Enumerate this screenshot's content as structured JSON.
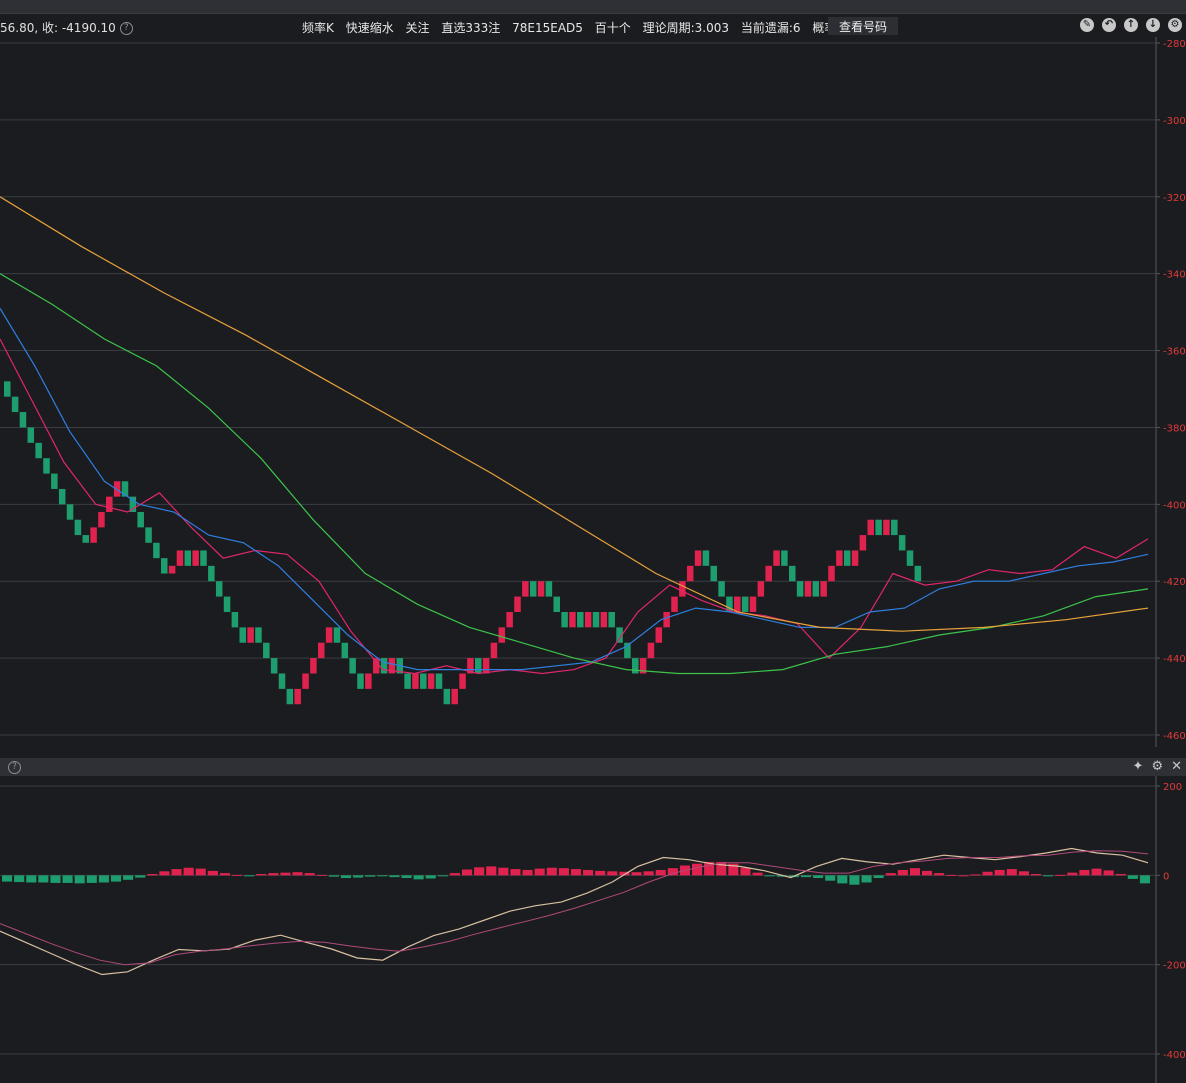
{
  "info_bar": {
    "left_text": "56.80, 收: -4190.10",
    "items": [
      "频率K",
      "快速缩水",
      "关注",
      "直选333注",
      "78E15EAD5",
      "百十个",
      "理论周期:3.003",
      "当前遗漏:6",
      "概率:33.3%"
    ],
    "check_button": "查看号码",
    "help_symbol": "?",
    "tool_icons": [
      "pen-icon",
      "undo-icon",
      "arrow-up-icon",
      "arrow-down-icon",
      "gear-icon"
    ]
  },
  "panel_bar": {
    "help_symbol": "?",
    "icons": [
      "pin-icon",
      "gear-icon",
      "close-icon"
    ],
    "icon_glyphs": [
      "✦",
      "⚙",
      "✕"
    ]
  },
  "colors": {
    "background": "#1b1c20",
    "up": "#e0234e",
    "down": "#1e9e6e",
    "ma_pink": "#e0266c",
    "ma_blue": "#2f7fe0",
    "ma_green": "#3cc44a",
    "ma_yellow": "#e8a23a",
    "axis_label": "#e03a3a",
    "grid": "#3a3c42"
  },
  "chart_data": [
    {
      "type": "candlestick",
      "y_axis_labels": [
        "-280",
        "-300",
        "-320",
        "-340",
        "-360",
        "-380",
        "-400",
        "-420",
        "-440",
        "-460"
      ],
      "ylim": [
        -460,
        -280
      ],
      "candles_close_sequence": [
        -372,
        -376,
        -380,
        -384,
        -388,
        -392,
        -396,
        -400,
        -404,
        -408,
        -410,
        -406,
        -402,
        -398,
        -394,
        -398,
        -402,
        -406,
        -410,
        -414,
        -418,
        -416,
        -412,
        -416,
        -412,
        -416,
        -420,
        -424,
        -428,
        -432,
        -436,
        -432,
        -436,
        -440,
        -444,
        -448,
        -452,
        -448,
        -444,
        -440,
        -436,
        -432,
        -436,
        -440,
        -444,
        -448,
        -444,
        -440,
        -444,
        -440,
        -444,
        -448,
        -444,
        -448,
        -444,
        -448,
        -452,
        -448,
        -444,
        -440,
        -444,
        -440,
        -436,
        -432,
        -428,
        -424,
        -420,
        -424,
        -420,
        -424,
        -428,
        -432,
        -428,
        -432,
        -428,
        -432,
        -428,
        -432,
        -436,
        -440,
        -444,
        -440,
        -436,
        -432,
        -428,
        -424,
        -420,
        -416,
        -412,
        -416,
        -420,
        -424,
        -428,
        -424,
        -428,
        -424,
        -420,
        -416,
        -412,
        -416,
        -420,
        -424,
        -420,
        -424,
        -420,
        -416,
        -412,
        -416,
        -412,
        -408,
        -404,
        -408,
        -404,
        -408,
        -412,
        -416,
        -420
      ],
      "moving_averages": [
        {
          "name": "MA5",
          "color": "#e0266c",
          "values": [
            -357,
            -373,
            -389,
            -400,
            -402,
            -397,
            -406,
            -414,
            -412,
            -413,
            -420,
            -433,
            -443,
            -444,
            -442,
            -444,
            -443,
            -444,
            -443,
            -440,
            -428,
            -421,
            -425,
            -428,
            -429,
            -431,
            -440,
            -432,
            -418,
            -421,
            -420,
            -417,
            -418,
            -417,
            -411,
            -414,
            -409
          ]
        },
        {
          "name": "MA10",
          "color": "#2f7fe0",
          "values": [
            -349,
            -364,
            -381,
            -394,
            -400,
            -402,
            -408,
            -410,
            -416,
            -425,
            -434,
            -441,
            -443,
            -443,
            -443,
            -443,
            -442,
            -441,
            -437,
            -430,
            -427,
            -428,
            -430,
            -432,
            -432,
            -428,
            -427,
            -422,
            -420,
            -420,
            -418,
            -416,
            -415,
            -413
          ]
        },
        {
          "name": "MA20",
          "color": "#3cc44a",
          "values": [
            -340,
            -348,
            -357,
            -364,
            -375,
            -388,
            -404,
            -418,
            -426,
            -432,
            -436,
            -440,
            -443,
            -444,
            -444,
            -443,
            -439,
            -437,
            -434,
            -432,
            -429,
            -424,
            -422
          ]
        },
        {
          "name": "MA60",
          "color": "#e8a23a",
          "values": [
            -320,
            -333,
            -345,
            -356,
            -368,
            -380,
            -392,
            -405,
            -418,
            -428,
            -432,
            -433,
            -432,
            -430,
            -427
          ]
        }
      ]
    },
    {
      "type": "macd",
      "y_axis_labels": [
        "200",
        "0",
        "-200",
        "-400"
      ],
      "ylim": [
        -400,
        200
      ],
      "histogram": [
        -14,
        -15,
        -16,
        -16,
        -17,
        -17,
        -18,
        -17,
        -16,
        -14,
        -10,
        -5,
        3,
        9,
        14,
        17,
        15,
        10,
        5,
        1,
        -1,
        3,
        5,
        6,
        7,
        5,
        1,
        -3,
        -6,
        -5,
        -3,
        -2,
        -4,
        -6,
        -9,
        -7,
        -2,
        5,
        13,
        18,
        20,
        17,
        14,
        12,
        15,
        17,
        16,
        14,
        12,
        10,
        9,
        8,
        7,
        9,
        12,
        16,
        22,
        26,
        30,
        30,
        26,
        17,
        6,
        -1,
        -3,
        -4,
        -4,
        -6,
        -12,
        -18,
        -21,
        -16,
        -6,
        5,
        12,
        16,
        10,
        5,
        1,
        0,
        2,
        8,
        12,
        14,
        9,
        3,
        -1,
        1,
        6,
        12,
        15,
        11,
        3,
        -8,
        -18
      ],
      "dif": [
        -125,
        -150,
        -175,
        -200,
        -222,
        -216,
        -190,
        -166,
        -169,
        -165,
        -145,
        -134,
        -150,
        -165,
        -185,
        -190,
        -160,
        -135,
        -120,
        -100,
        -80,
        -68,
        -60,
        -40,
        -15,
        20,
        40,
        35,
        25,
        20,
        10,
        -5,
        20,
        38,
        30,
        25,
        35,
        45,
        40,
        35,
        42,
        50,
        60,
        50,
        45,
        28
      ],
      "dea": [
        -108,
        -130,
        -152,
        -172,
        -190,
        -200,
        -196,
        -178,
        -170,
        -165,
        -158,
        -152,
        -148,
        -150,
        -158,
        -165,
        -170,
        -160,
        -148,
        -132,
        -118,
        -104,
        -90,
        -74,
        -56,
        -38,
        -15,
        5,
        18,
        28,
        28,
        20,
        12,
        5,
        5,
        20,
        28,
        32,
        38,
        40,
        40,
        44,
        45,
        52,
        55,
        54,
        48
      ]
    }
  ]
}
